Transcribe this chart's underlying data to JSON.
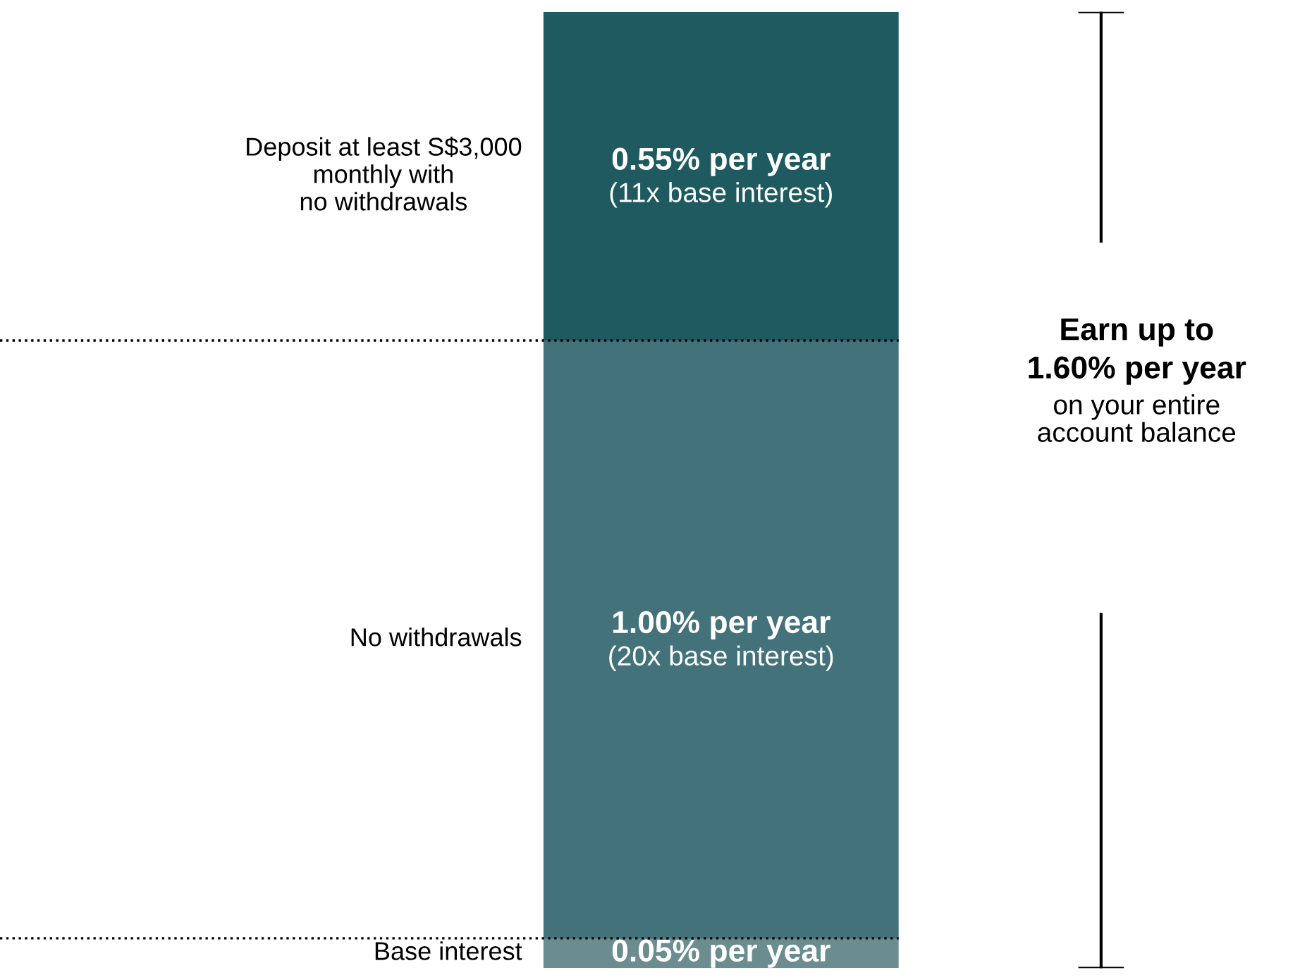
{
  "chart_data": {
    "type": "bar",
    "stacked": true,
    "categories": [
      null
    ],
    "series": [
      {
        "name": "Base interest",
        "color": "#6b8d8f",
        "values": [
          0.05
        ],
        "value_labels": [
          "0.05% per year"
        ]
      },
      {
        "name": "No withdrawals",
        "color": "#43727a",
        "values": [
          1.0
        ],
        "value_labels": [
          "1.00% per year\n(20x base interest)"
        ]
      },
      {
        "name": "Deposit at least S$3,000\nmonthly with\nno withdrawals",
        "color": "#1f5a60",
        "values": [
          0.55
        ],
        "value_labels": [
          "0.55% per year\n(11x base interest)"
        ]
      }
    ],
    "ref_lines": [
      {
        "axis": "y",
        "value": 0.05,
        "color": "#000000",
        "line_style": "dotted"
      },
      {
        "axis": "y",
        "value": 1.05,
        "color": "#000000",
        "line_style": "dotted"
      }
    ],
    "annotations": [
      "Earn up to\n1.60% per year",
      "on your entire\naccount balance"
    ]
  }
}
